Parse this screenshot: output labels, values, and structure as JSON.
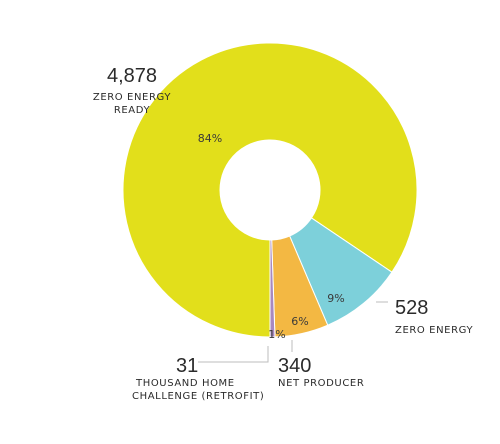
{
  "colors": {
    "zero_energy_ready": "#E2DF1B",
    "zero_energy": "#7DD0DA",
    "net_producer": "#F3B843",
    "thousand_home": "#A889C0"
  },
  "chart_data": {
    "type": "pie",
    "variant": "donut",
    "title": "",
    "legend": "none",
    "slices": [
      {
        "key": "zero_energy_ready",
        "value": 4878,
        "value_label": "4,878",
        "label_lines": [
          "ZERO ENERGY",
          "READY"
        ],
        "percent_label": "84%"
      },
      {
        "key": "zero_energy",
        "value": 528,
        "value_label": "528",
        "label_lines": [
          "ZERO ENERGY"
        ],
        "percent_label": "9%"
      },
      {
        "key": "net_producer",
        "value": 340,
        "value_label": "340",
        "label_lines": [
          "NET PRODUCER"
        ],
        "percent_label": "6%"
      },
      {
        "key": "thousand_home",
        "value": 31,
        "value_label": "31",
        "label_lines": [
          "THOUSAND HOME",
          "CHALLENGE (RETROFIT)"
        ],
        "percent_label": "1%"
      }
    ]
  }
}
